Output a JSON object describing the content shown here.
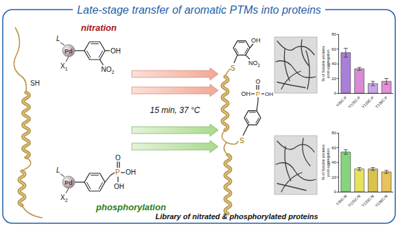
{
  "header": {
    "title": "Late-stage transfer of aromatic PTMs into proteins"
  },
  "protein": {
    "thiol": "SH"
  },
  "reactions": [
    {
      "name": "nitration",
      "color": "#a31515",
      "ligand": "L",
      "metal": "Pd",
      "halide": {
        "text": "X",
        "sub": "1"
      },
      "groups": [
        {
          "text": "OH"
        },
        {
          "text": "NO",
          "sub": "2"
        }
      ],
      "product": {
        "linker": "S",
        "groups": [
          {
            "text": "OH"
          },
          {
            "text": "NO",
            "sub": "2"
          }
        ]
      }
    },
    {
      "name": "phosphorylation",
      "color": "#2e7d1e",
      "ligand": "L",
      "metal": "Pd",
      "halide": {
        "text": "X",
        "sub": "2"
      },
      "groups": [
        {
          "text": "P"
        },
        {
          "text": "O"
        },
        {
          "text": "OH"
        },
        {
          "text": "OH"
        }
      ],
      "product": {
        "linker": "S",
        "groups": [
          {
            "text": "P"
          },
          {
            "text": "O"
          },
          {
            "text": "OH"
          },
          {
            "text": "OH"
          }
        ]
      }
    }
  ],
  "conditions": "15 min, 37 °C",
  "footer": "Library of nitrated & phosphorylated proteins",
  "chart_data": [
    {
      "type": "bar",
      "categories": [
        "Y39C-P",
        "Y125C-P",
        "Y133C-P",
        "Y136C-P"
      ],
      "values": [
        55,
        33,
        13,
        16
      ],
      "errors": [
        6,
        2,
        3,
        4
      ],
      "colors": [
        "#a97fd9",
        "#d98ad6",
        "#c9a6ec",
        "#e48fd8"
      ],
      "y_label": [
        "% of Soluble proteins",
        "post-aggregation"
      ],
      "ylim": [
        0,
        80
      ],
      "yticks": [
        0,
        20,
        40,
        60,
        80
      ],
      "grid": false
    },
    {
      "type": "bar",
      "categories": [
        "Y39C-N",
        "Y125C-N",
        "Y133C-N",
        "Y136C-N"
      ],
      "values": [
        54,
        31,
        31,
        27
      ],
      "errors": [
        3,
        2,
        2,
        2
      ],
      "colors": [
        "#86d47c",
        "#e6e25e",
        "#d9c24e",
        "#e8c25c"
      ],
      "y_label": [
        "% of Soluble proteins",
        "post-aggregation"
      ],
      "ylim": [
        0,
        80
      ],
      "yticks": [
        0,
        20,
        40,
        60,
        80
      ],
      "grid": false
    }
  ]
}
